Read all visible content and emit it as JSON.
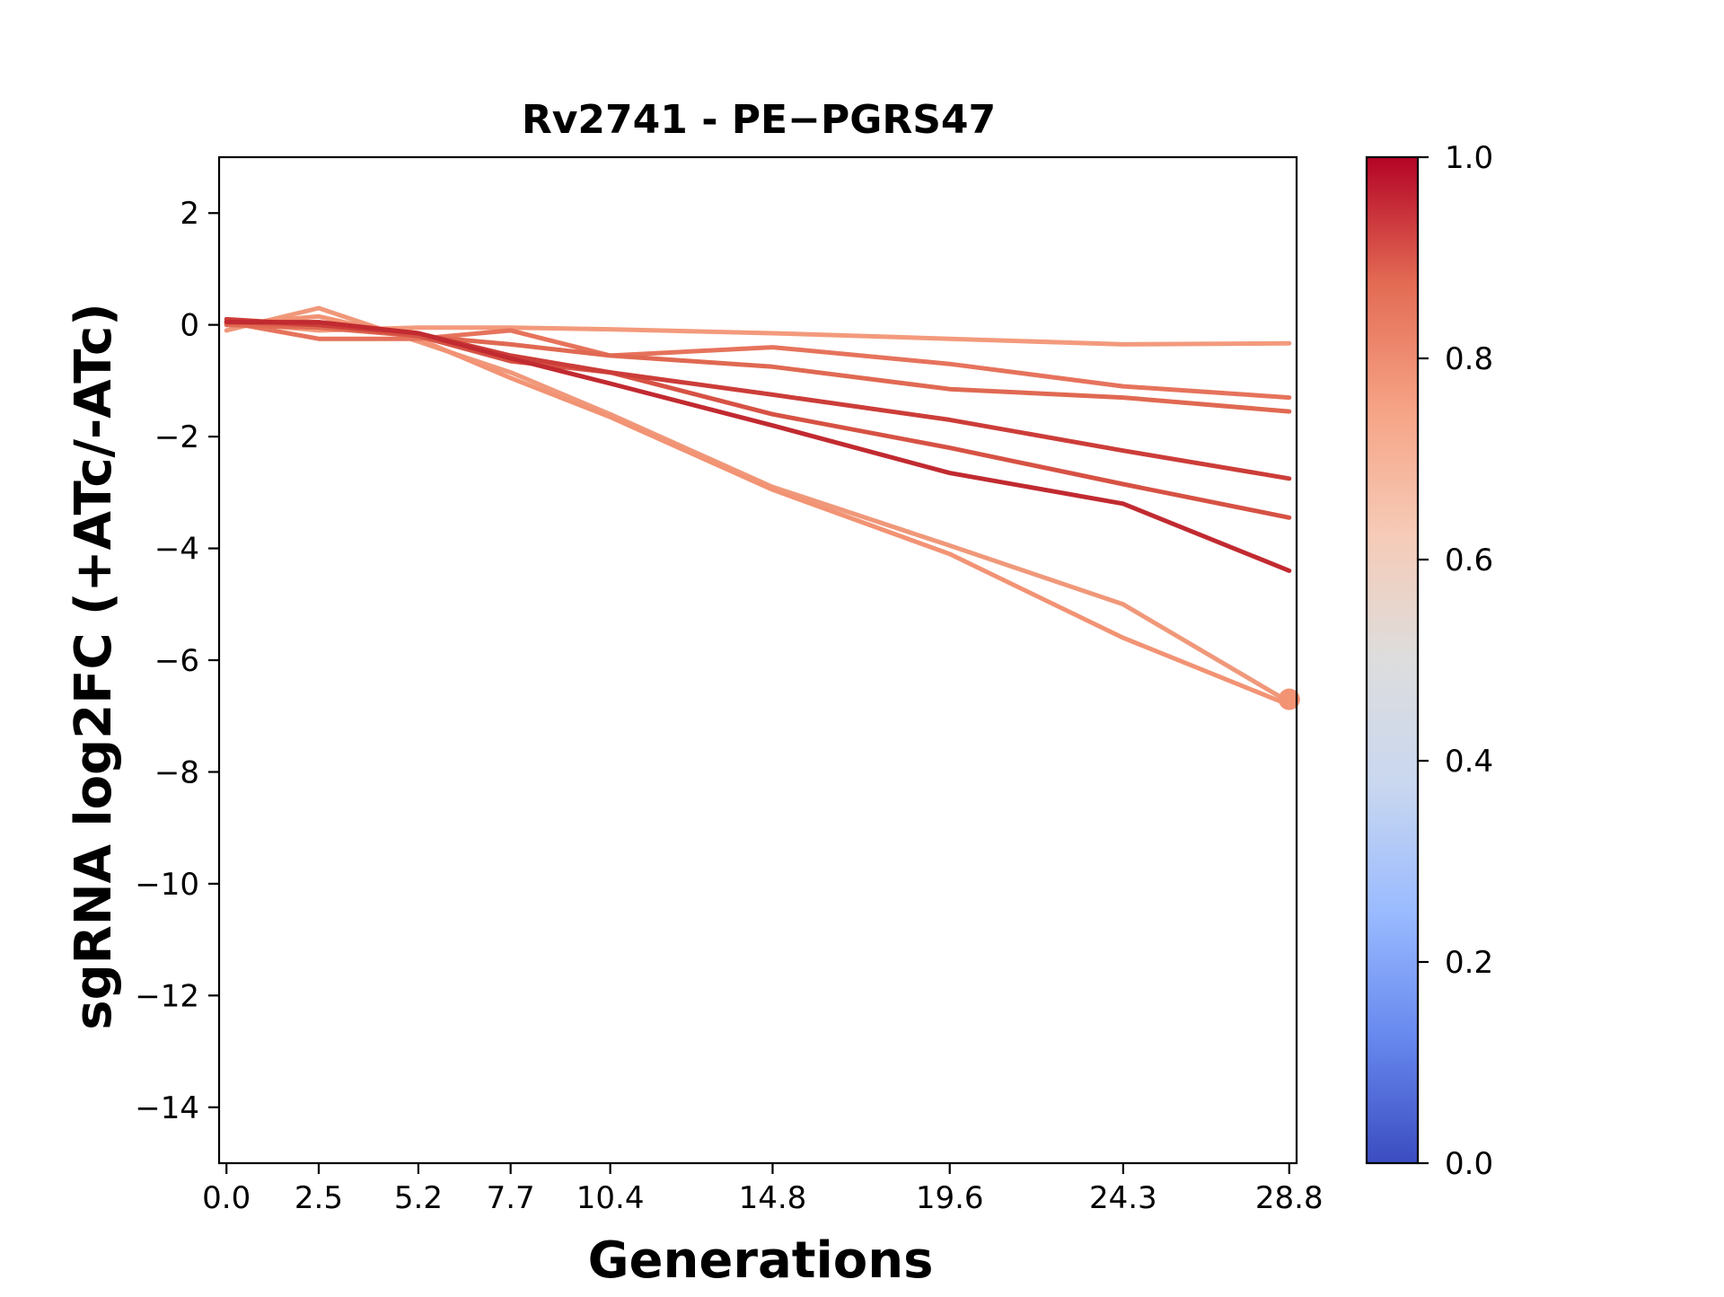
{
  "chart_data": {
    "type": "line",
    "title": "Rv2741 - PE−PGRS47",
    "xlabel": "Generations",
    "ylabel": "sgRNA log2FC (+ATc/-ATc)",
    "x": [
      0.0,
      2.5,
      5.2,
      7.7,
      10.4,
      14.8,
      19.6,
      24.3,
      28.8
    ],
    "x_tick_labels": [
      "0.0",
      "2.5",
      "5.2",
      "7.7",
      "10.4",
      "14.8",
      "19.6",
      "24.3",
      "28.8"
    ],
    "xlim": [
      -0.2,
      29.0
    ],
    "ylim": [
      -15,
      3
    ],
    "y_ticks": [
      2,
      0,
      -2,
      -4,
      -6,
      -8,
      -10,
      -12,
      -14
    ],
    "y_tick_labels": [
      "2",
      "0",
      "−2",
      "−4",
      "−6",
      "−8",
      "−10",
      "−12",
      "−14"
    ],
    "grid": false,
    "series": [
      {
        "color_value": 0.72,
        "color": "#f0987a",
        "values": [
          -0.1,
          0.3,
          -0.3,
          -0.85,
          -1.6,
          -2.9,
          -3.95,
          -5.0,
          -6.75
        ]
      },
      {
        "color_value": 0.73,
        "color": "#f29374",
        "values": [
          0.0,
          0.15,
          -0.25,
          -0.95,
          -1.65,
          -2.95,
          -4.1,
          -5.6,
          -6.8
        ]
      },
      {
        "color_value": 0.72,
        "color": "#f39a7c",
        "values": [
          0.05,
          -0.1,
          -0.05,
          -0.05,
          -0.08,
          -0.15,
          -0.25,
          -0.35,
          -0.33
        ]
      },
      {
        "color_value": 0.8,
        "color": "#e6735c",
        "values": [
          0.05,
          -0.25,
          -0.25,
          -0.1,
          -0.55,
          -0.4,
          -0.7,
          -1.1,
          -1.3
        ]
      },
      {
        "color_value": 0.83,
        "color": "#e06952",
        "values": [
          0.0,
          -0.05,
          -0.2,
          -0.35,
          -0.55,
          -0.75,
          -1.15,
          -1.3,
          -1.55
        ]
      },
      {
        "color_value": 0.88,
        "color": "#d65244",
        "values": [
          0.05,
          0.0,
          -0.2,
          -0.65,
          -0.85,
          -1.6,
          -2.2,
          -2.85,
          -3.45
        ]
      },
      {
        "color_value": 0.9,
        "color": "#cc3d39",
        "values": [
          0.1,
          0.0,
          -0.15,
          -0.55,
          -0.85,
          -1.25,
          -1.7,
          -2.25,
          -2.75
        ]
      },
      {
        "color_value": 0.95,
        "color": "#c12a30",
        "values": [
          0.05,
          0.05,
          -0.15,
          -0.6,
          -1.05,
          -1.8,
          -2.65,
          -3.2,
          -4.4
        ]
      }
    ],
    "endpoint_marker": {
      "x": 28.8,
      "y": -6.7,
      "color": "#f29374"
    },
    "colorbar": {
      "colormap": "coolwarm",
      "range": [
        0.0,
        1.0
      ],
      "ticks": [
        0.0,
        0.2,
        0.4,
        0.6,
        0.8,
        1.0
      ],
      "tick_labels": [
        "0.0",
        "0.2",
        "0.4",
        "0.6",
        "0.8",
        "1.0"
      ],
      "stops": [
        "#3b4cc0",
        "#6788ee",
        "#9abbff",
        "#c9d7f0",
        "#dddddd",
        "#f6cbb7",
        "#f6a385",
        "#e36b54",
        "#b40426"
      ]
    }
  }
}
